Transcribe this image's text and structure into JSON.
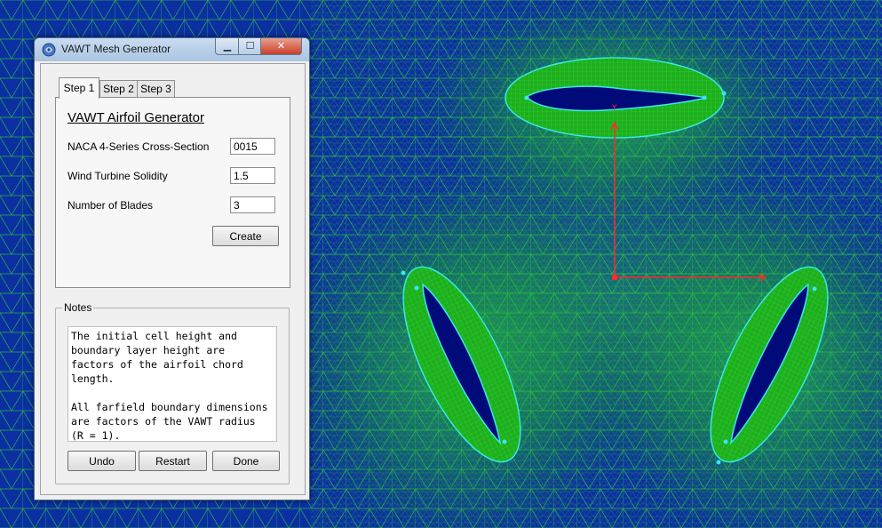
{
  "window": {
    "title": "VAWT Mesh Generator",
    "controls": {
      "minimize": "▁",
      "maximize": "☐",
      "close": "✕"
    }
  },
  "tabs": [
    {
      "label": "Step 1",
      "active": true
    },
    {
      "label": "Step 2",
      "active": false
    },
    {
      "label": "Step 3",
      "active": false
    }
  ],
  "form": {
    "title": "VAWT Airfoil Generator",
    "fields": [
      {
        "label": "NACA 4-Series Cross-Section",
        "value": "0015"
      },
      {
        "label": "Wind Turbine Solidity",
        "value": "1.5"
      },
      {
        "label": "Number of Blades",
        "value": "3"
      }
    ],
    "create_label": "Create"
  },
  "notes": {
    "label": "Notes",
    "paragraph1": "The initial cell height and boundary layer height are factors of the airfoil chord length.",
    "paragraph2": "All farfield boundary dimensions are factors of the VAWT radius (R = 1)."
  },
  "buttons": {
    "undo": "Undo",
    "restart": "Restart",
    "done": "Done"
  },
  "viewport": {
    "axis_label_y": "Y",
    "colors": {
      "background": "#0a2a9a",
      "mesh": "#33dd33",
      "airfoil_fill": "#000a78",
      "boundary": "#38e8f0",
      "axis": "#ff2a2a"
    }
  }
}
